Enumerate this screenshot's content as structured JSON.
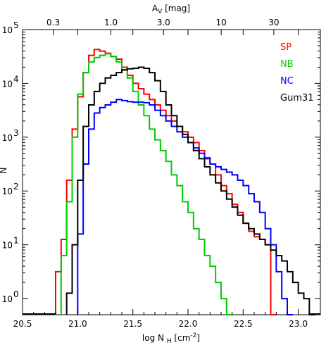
{
  "chart_data": {
    "type": "line",
    "step": true,
    "xlabel": "log N",
    "xlabel_sub": "H",
    "xlabel_unit": "[cm",
    "xlabel_sup": "-2",
    "xlabel_end": "]",
    "ylabel": "N",
    "top_axis_label": "A",
    "top_axis_sub": "V",
    "top_axis_unit": "[mag]",
    "xlim": [
      20.5,
      23.2
    ],
    "ylim_log10": [
      -0.3,
      5.0
    ],
    "y_log": true,
    "grid": false,
    "legend_position": "top-right",
    "x_ticks": [
      "20.5",
      "21.0",
      "21.5",
      "22.0",
      "22.5",
      "23.0"
    ],
    "y_ticks": [
      "10",
      "10",
      "10",
      "10",
      "10",
      "10"
    ],
    "y_tick_exponents": [
      "0",
      "1",
      "2",
      "3",
      "4",
      "5"
    ],
    "top_ticks": [
      "0.3",
      "1.0",
      "3.0",
      "10",
      "30"
    ],
    "series": [
      {
        "name": "SP",
        "color": "#ff0000",
        "points": [
          [
            20.8,
            -0.3
          ],
          [
            20.8,
            0.5
          ],
          [
            20.85,
            1.1
          ],
          [
            20.9,
            2.2
          ],
          [
            20.95,
            3.15
          ],
          [
            21.0,
            3.75
          ],
          [
            21.05,
            4.2
          ],
          [
            21.1,
            4.52
          ],
          [
            21.15,
            4.63
          ],
          [
            21.2,
            4.6
          ],
          [
            21.25,
            4.56
          ],
          [
            21.3,
            4.5
          ],
          [
            21.35,
            4.45
          ],
          [
            21.4,
            4.3
          ],
          [
            21.45,
            4.15
          ],
          [
            21.5,
            4.0
          ],
          [
            21.55,
            3.9
          ],
          [
            21.6,
            3.8
          ],
          [
            21.65,
            3.7
          ],
          [
            21.7,
            3.6
          ],
          [
            21.75,
            3.5
          ],
          [
            21.8,
            3.4
          ],
          [
            21.85,
            3.3
          ],
          [
            21.9,
            3.2
          ],
          [
            21.95,
            3.1
          ],
          [
            22.0,
            3.0
          ],
          [
            22.05,
            2.9
          ],
          [
            22.1,
            2.75
          ],
          [
            22.15,
            2.62
          ],
          [
            22.2,
            2.5
          ],
          [
            22.25,
            2.3
          ],
          [
            22.3,
            2.1
          ],
          [
            22.35,
            1.95
          ],
          [
            22.4,
            1.75
          ],
          [
            22.45,
            1.6
          ],
          [
            22.5,
            1.4
          ],
          [
            22.55,
            1.25
          ],
          [
            22.6,
            1.15
          ],
          [
            22.65,
            1.1
          ],
          [
            22.7,
            1.0
          ],
          [
            22.75,
            -0.3
          ]
        ]
      },
      {
        "name": "NB",
        "color": "#00cc00",
        "points": [
          [
            20.85,
            -0.3
          ],
          [
            20.85,
            0.8
          ],
          [
            20.9,
            1.8
          ],
          [
            20.95,
            3.0
          ],
          [
            21.0,
            3.8
          ],
          [
            21.05,
            4.2
          ],
          [
            21.1,
            4.4
          ],
          [
            21.15,
            4.48
          ],
          [
            21.2,
            4.52
          ],
          [
            21.25,
            4.55
          ],
          [
            21.3,
            4.5
          ],
          [
            21.35,
            4.4
          ],
          [
            21.4,
            4.25
          ],
          [
            21.45,
            4.1
          ],
          [
            21.5,
            3.85
          ],
          [
            21.55,
            3.6
          ],
          [
            21.6,
            3.4
          ],
          [
            21.65,
            3.15
          ],
          [
            21.7,
            2.95
          ],
          [
            21.75,
            2.75
          ],
          [
            21.8,
            2.55
          ],
          [
            21.85,
            2.3
          ],
          [
            21.9,
            2.1
          ],
          [
            21.95,
            1.8
          ],
          [
            22.0,
            1.6
          ],
          [
            22.05,
            1.3
          ],
          [
            22.1,
            1.1
          ],
          [
            22.15,
            0.8
          ],
          [
            22.2,
            0.6
          ],
          [
            22.25,
            0.3
          ],
          [
            22.3,
            0.0
          ],
          [
            22.35,
            -0.3
          ]
        ]
      },
      {
        "name": "NC",
        "color": "#0000ff",
        "points": [
          [
            21.0,
            -0.3
          ],
          [
            21.0,
            1.2
          ],
          [
            21.05,
            2.5
          ],
          [
            21.1,
            3.15
          ],
          [
            21.15,
            3.45
          ],
          [
            21.2,
            3.55
          ],
          [
            21.25,
            3.6
          ],
          [
            21.3,
            3.65
          ],
          [
            21.35,
            3.7
          ],
          [
            21.4,
            3.68
          ],
          [
            21.45,
            3.66
          ],
          [
            21.5,
            3.65
          ],
          [
            21.55,
            3.65
          ],
          [
            21.6,
            3.64
          ],
          [
            21.65,
            3.6
          ],
          [
            21.7,
            3.5
          ],
          [
            21.75,
            3.4
          ],
          [
            21.8,
            3.3
          ],
          [
            21.85,
            3.2
          ],
          [
            21.9,
            3.1
          ],
          [
            21.95,
            3.0
          ],
          [
            22.0,
            2.9
          ],
          [
            22.05,
            2.8
          ],
          [
            22.1,
            2.7
          ],
          [
            22.15,
            2.6
          ],
          [
            22.2,
            2.5
          ],
          [
            22.25,
            2.45
          ],
          [
            22.3,
            2.4
          ],
          [
            22.35,
            2.35
          ],
          [
            22.4,
            2.3
          ],
          [
            22.45,
            2.2
          ],
          [
            22.5,
            2.1
          ],
          [
            22.55,
            1.95
          ],
          [
            22.6,
            1.8
          ],
          [
            22.65,
            1.6
          ],
          [
            22.7,
            1.3
          ],
          [
            22.75,
            1.0
          ],
          [
            22.8,
            0.5
          ],
          [
            22.85,
            0.0
          ],
          [
            22.9,
            -0.3
          ]
        ]
      },
      {
        "name": "Gum31",
        "color": "#000000",
        "points": [
          [
            20.9,
            -0.3
          ],
          [
            20.9,
            0.1
          ],
          [
            20.95,
            1.0
          ],
          [
            21.0,
            2.2
          ],
          [
            21.05,
            3.2
          ],
          [
            21.1,
            3.6
          ],
          [
            21.15,
            3.85
          ],
          [
            21.2,
            4.0
          ],
          [
            21.25,
            4.1
          ],
          [
            21.3,
            4.15
          ],
          [
            21.35,
            4.2
          ],
          [
            21.4,
            4.25
          ],
          [
            21.45,
            4.27
          ],
          [
            21.5,
            4.28
          ],
          [
            21.55,
            4.3
          ],
          [
            21.6,
            4.28
          ],
          [
            21.65,
            4.2
          ],
          [
            21.7,
            4.05
          ],
          [
            21.75,
            3.85
          ],
          [
            21.8,
            3.6
          ],
          [
            21.85,
            3.4
          ],
          [
            21.9,
            3.2
          ],
          [
            21.95,
            3.05
          ],
          [
            22.0,
            2.9
          ],
          [
            22.05,
            2.75
          ],
          [
            22.1,
            2.6
          ],
          [
            22.15,
            2.45
          ],
          [
            22.2,
            2.3
          ],
          [
            22.25,
            2.15
          ],
          [
            22.3,
            2.0
          ],
          [
            22.35,
            1.85
          ],
          [
            22.4,
            1.7
          ],
          [
            22.45,
            1.55
          ],
          [
            22.5,
            1.4
          ],
          [
            22.55,
            1.3
          ],
          [
            22.6,
            1.2
          ],
          [
            22.65,
            1.1
          ],
          [
            22.7,
            1.0
          ],
          [
            22.75,
            0.9
          ],
          [
            22.8,
            0.8
          ],
          [
            22.85,
            0.7
          ],
          [
            22.9,
            0.5
          ],
          [
            22.95,
            0.3
          ],
          [
            23.0,
            0.1
          ],
          [
            23.05,
            0.0
          ],
          [
            23.1,
            -0.3
          ]
        ]
      }
    ]
  }
}
